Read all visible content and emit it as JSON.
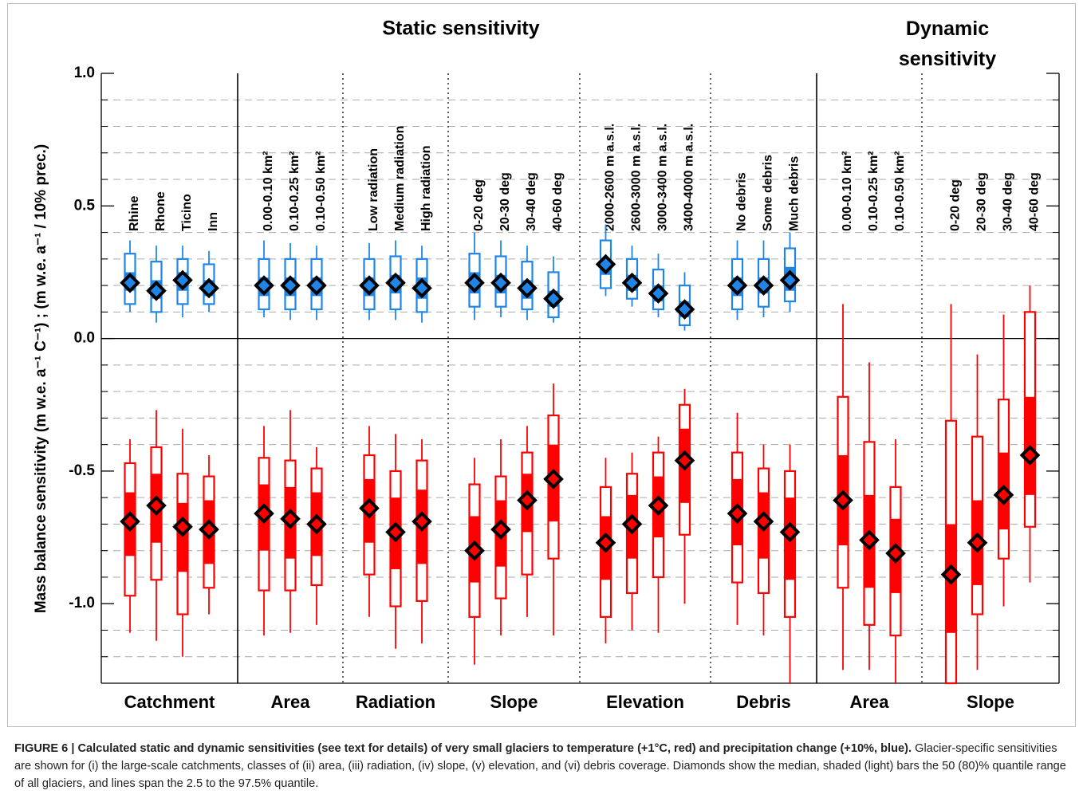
{
  "chart_data": {
    "type": "boxplot",
    "static_title": "Static sensitivity",
    "dynamic_title": "Dynamic sensitivity",
    "y_label": "Mass balance sensitivity (m w.e. a⁻¹ C⁻¹)  ;  (m w.e. a⁻¹ / 10% prec.)",
    "ylim": [
      -1.3,
      1.0
    ],
    "yticks": [
      {
        "value": 1.0,
        "label": "1.0"
      },
      {
        "value": 0.5,
        "label": "0.5"
      },
      {
        "value": 0.0,
        "label": "0.0"
      },
      {
        "value": -0.5,
        "label": "-0.5"
      },
      {
        "value": -1.0,
        "label": "-1.0"
      }
    ],
    "gridlines": [
      0.9,
      0.8,
      0.7,
      0.6,
      0.4,
      0.3,
      0.2,
      0.1,
      -0.1,
      -0.2,
      -0.3,
      -0.4,
      -0.6,
      -0.7,
      -0.8,
      -0.9,
      -1.1,
      -1.2
    ],
    "temp_color": "#ff0000",
    "prec_color": "#1f86e8",
    "groups": [
      {
        "label": "Catchment",
        "categories": [
          "Rhine",
          "Rhone",
          "Ticino",
          "Inn"
        ],
        "prec": [
          [
            0.1,
            0.13,
            0.18,
            0.21,
            0.25,
            0.32,
            0.37
          ],
          [
            0.06,
            0.1,
            0.15,
            0.18,
            0.22,
            0.29,
            0.35
          ],
          [
            0.08,
            0.13,
            0.18,
            0.22,
            0.25,
            0.3,
            0.35
          ],
          [
            0.1,
            0.13,
            0.16,
            0.19,
            0.22,
            0.28,
            0.33
          ]
        ],
        "temp": [
          [
            -1.11,
            -0.97,
            -0.82,
            -0.69,
            -0.58,
            -0.47,
            -0.38
          ],
          [
            -1.14,
            -0.91,
            -0.77,
            -0.63,
            -0.51,
            -0.41,
            -0.27
          ],
          [
            -1.2,
            -1.04,
            -0.88,
            -0.71,
            -0.62,
            -0.51,
            -0.34
          ],
          [
            -1.04,
            -0.94,
            -0.85,
            -0.72,
            -0.61,
            -0.52,
            -0.44
          ]
        ]
      },
      {
        "label": "Area",
        "categories": [
          "0.00-0.10 km²",
          "0.10-0.25 km²",
          "0.10-0.50 km²"
        ],
        "prec": [
          [
            0.08,
            0.11,
            0.16,
            0.2,
            0.23,
            0.3,
            0.37
          ],
          [
            0.07,
            0.11,
            0.16,
            0.2,
            0.23,
            0.3,
            0.36
          ],
          [
            0.07,
            0.11,
            0.16,
            0.2,
            0.23,
            0.3,
            0.35
          ]
        ],
        "temp": [
          [
            -1.12,
            -0.95,
            -0.8,
            -0.66,
            -0.55,
            -0.45,
            -0.33
          ],
          [
            -1.11,
            -0.95,
            -0.83,
            -0.68,
            -0.56,
            -0.46,
            -0.27
          ],
          [
            -1.08,
            -0.93,
            -0.82,
            -0.7,
            -0.58,
            -0.49,
            -0.41
          ]
        ]
      },
      {
        "label": "Radiation",
        "categories": [
          "Low radiation",
          "Medium radiation",
          "High radiation"
        ],
        "prec": [
          [
            0.07,
            0.11,
            0.16,
            0.2,
            0.23,
            0.3,
            0.36
          ],
          [
            0.07,
            0.11,
            0.17,
            0.21,
            0.24,
            0.31,
            0.37
          ],
          [
            0.06,
            0.1,
            0.15,
            0.19,
            0.23,
            0.3,
            0.35
          ]
        ],
        "temp": [
          [
            -1.05,
            -0.89,
            -0.77,
            -0.64,
            -0.53,
            -0.44,
            -0.33
          ],
          [
            -1.17,
            -1.01,
            -0.87,
            -0.73,
            -0.6,
            -0.5,
            -0.36
          ],
          [
            -1.15,
            -0.99,
            -0.85,
            -0.69,
            -0.57,
            -0.46,
            -0.38
          ]
        ]
      },
      {
        "label": "Slope",
        "categories": [
          "0-20 deg",
          "20-30 deg",
          "30-40 deg",
          "40-60 deg"
        ],
        "prec": [
          [
            0.07,
            0.12,
            0.17,
            0.21,
            0.25,
            0.32,
            0.4
          ],
          [
            0.08,
            0.12,
            0.17,
            0.21,
            0.24,
            0.31,
            0.37
          ],
          [
            0.07,
            0.11,
            0.15,
            0.19,
            0.22,
            0.29,
            0.35
          ],
          [
            0.06,
            0.08,
            0.12,
            0.15,
            0.18,
            0.25,
            0.31
          ]
        ],
        "temp": [
          [
            -1.23,
            -1.05,
            -0.92,
            -0.8,
            -0.67,
            -0.55,
            -0.45
          ],
          [
            -1.12,
            -0.98,
            -0.86,
            -0.72,
            -0.61,
            -0.52,
            -0.38
          ],
          [
            -1.05,
            -0.89,
            -0.73,
            -0.61,
            -0.51,
            -0.43,
            -0.33
          ],
          [
            -1.12,
            -0.83,
            -0.69,
            -0.53,
            -0.4,
            -0.29,
            -0.17
          ]
        ]
      },
      {
        "label": "Elevation",
        "categories": [
          "2000-2600 m a.s.l.",
          "2600-3000 m a.s.l.",
          "3000-3400 m a.s.l.",
          "3400-4000 m a.s.l."
        ],
        "prec": [
          [
            0.16,
            0.19,
            0.24,
            0.28,
            0.3,
            0.37,
            0.43
          ],
          [
            0.12,
            0.15,
            0.18,
            0.21,
            0.24,
            0.3,
            0.35
          ],
          [
            0.08,
            0.11,
            0.14,
            0.17,
            0.2,
            0.26,
            0.32
          ],
          [
            0.03,
            0.05,
            0.08,
            0.11,
            0.14,
            0.2,
            0.25
          ]
        ],
        "temp": [
          [
            -1.15,
            -1.05,
            -0.91,
            -0.77,
            -0.67,
            -0.56,
            -0.45
          ],
          [
            -1.1,
            -0.96,
            -0.83,
            -0.7,
            -0.59,
            -0.51,
            -0.43
          ],
          [
            -1.11,
            -0.9,
            -0.75,
            -0.63,
            -0.52,
            -0.43,
            -0.37
          ],
          [
            -1.0,
            -0.74,
            -0.62,
            -0.46,
            -0.34,
            -0.25,
            -0.19
          ]
        ]
      },
      {
        "label": "Debris",
        "categories": [
          "No debris",
          "Some debris",
          "Much debris"
        ],
        "prec": [
          [
            0.07,
            0.11,
            0.16,
            0.2,
            0.23,
            0.3,
            0.37
          ],
          [
            0.08,
            0.12,
            0.17,
            0.2,
            0.23,
            0.3,
            0.37
          ],
          [
            0.1,
            0.14,
            0.18,
            0.22,
            0.27,
            0.34,
            0.4
          ]
        ],
        "temp": [
          [
            -1.08,
            -0.92,
            -0.78,
            -0.66,
            -0.53,
            -0.43,
            -0.28
          ],
          [
            -1.12,
            -0.96,
            -0.83,
            -0.69,
            -0.58,
            -0.49,
            -0.4
          ],
          [
            -1.3,
            -1.05,
            -0.91,
            -0.73,
            -0.6,
            -0.5,
            -0.4
          ]
        ]
      },
      {
        "label": "Area",
        "categories": [
          "0.00-0.10 km²",
          "0.10-0.25 km²",
          "0.10-0.50 km²"
        ],
        "temp": [
          [
            -1.25,
            -0.94,
            -0.78,
            -0.61,
            -0.44,
            -0.22,
            0.13
          ],
          [
            -1.25,
            -1.08,
            -0.94,
            -0.76,
            -0.59,
            -0.39,
            -0.09
          ],
          [
            -1.3,
            -1.12,
            -0.96,
            -0.81,
            -0.68,
            -0.56,
            -0.38
          ]
        ]
      },
      {
        "label": "Slope",
        "categories": [
          "0-20 deg",
          "20-30 deg",
          "30-40 deg",
          "40-60 deg"
        ],
        "temp": [
          [
            -1.3,
            -1.3,
            -1.11,
            -0.89,
            -0.7,
            -0.31,
            0.13
          ],
          [
            -1.25,
            -1.04,
            -0.93,
            -0.77,
            -0.61,
            -0.37,
            -0.06
          ],
          [
            -1.01,
            -0.83,
            -0.72,
            -0.59,
            -0.43,
            -0.23,
            0.09
          ],
          [
            -0.92,
            -0.71,
            -0.59,
            -0.44,
            -0.22,
            0.1,
            0.2
          ]
        ]
      }
    ]
  },
  "caption": {
    "bold": "FIGURE 6 | Calculated static and dynamic sensitivities (see text for details) of very small glaciers to temperature (+1°C, red) and precipitation change (+10%, blue).",
    "text": " Glacier-specific sensitivities are shown for (i) the large-scale catchments, classes of (ii) area, (iii) radiation, (iv) slope, (v) elevation, and (vi) debris coverage. Diamonds show the median, shaded (light) bars the 50 (80)% quantile range of all glaciers, and lines span the 2.5 to the 97.5% quantile."
  }
}
